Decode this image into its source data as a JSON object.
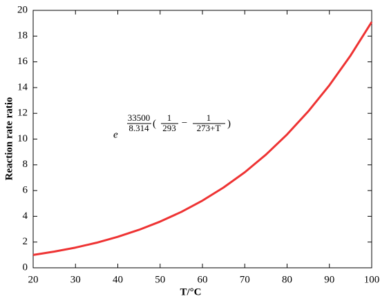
{
  "chart_data": {
    "type": "line",
    "x_label": "T/°C",
    "y_label": "Reaction rate ratio",
    "x": [
      20,
      25,
      30,
      35,
      40,
      45,
      50,
      55,
      60,
      65,
      70,
      75,
      80,
      85,
      90,
      95,
      100
    ],
    "series": [
      {
        "name": "Reaction rate ratio",
        "color": "#ee3333",
        "values": [
          1.0,
          1.26,
          1.57,
          1.95,
          2.41,
          2.95,
          3.59,
          4.34,
          5.22,
          6.24,
          7.42,
          8.79,
          10.36,
          12.15,
          14.18,
          16.49,
          19.1
        ]
      }
    ],
    "xlim": [
      20,
      100
    ],
    "xticks": [
      20,
      30,
      40,
      50,
      60,
      70,
      80,
      90,
      100
    ],
    "ylim": [
      0,
      20
    ],
    "yticks": [
      0,
      2,
      4,
      6,
      8,
      10,
      12,
      14,
      16,
      18,
      20
    ],
    "annotation": {
      "base": "e",
      "numerator": "33500",
      "denominator": "8.314",
      "open": "(",
      "term1_num": "1",
      "term1_den": "293",
      "minus": "−",
      "term2_num": "1",
      "term2_den": "273+T",
      "close": ")"
    }
  }
}
